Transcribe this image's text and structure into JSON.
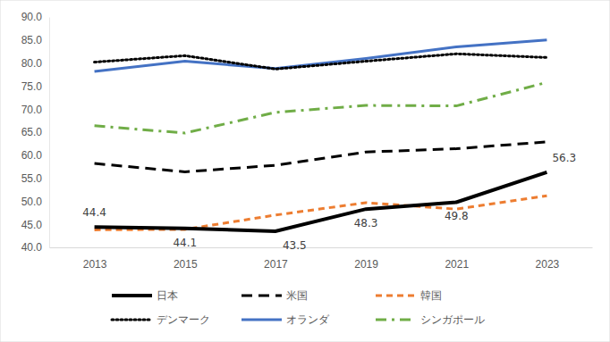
{
  "chart_data": {
    "type": "line",
    "categories": [
      "2013",
      "2015",
      "2017",
      "2019",
      "2021",
      "2023"
    ],
    "ylim": [
      40,
      90
    ],
    "yticks": [
      {
        "value": 40,
        "label": "40.0"
      },
      {
        "value": 45,
        "label": "45.0"
      },
      {
        "value": 50,
        "label": "50.0"
      },
      {
        "value": 55,
        "label": "55.0"
      },
      {
        "value": 60,
        "label": "60.0"
      },
      {
        "value": 65,
        "label": "65.0"
      },
      {
        "value": 70,
        "label": "70.0"
      },
      {
        "value": 75,
        "label": "75.0"
      },
      {
        "value": 80,
        "label": "80.0"
      },
      {
        "value": 85,
        "label": "85.0"
      },
      {
        "value": 90,
        "label": "90.0"
      }
    ],
    "grid": false,
    "legend": "bottom",
    "series": [
      {
        "name": "日本",
        "color": "#000000",
        "line_style": "solid",
        "data_labels": true,
        "values": [
          44.4,
          44.1,
          43.5,
          48.3,
          49.8,
          56.3
        ]
      },
      {
        "name": "米国",
        "color": "#000000",
        "line_style": "longdash",
        "values": [
          58.2,
          56.4,
          57.8,
          60.7,
          61.4,
          62.9
        ]
      },
      {
        "name": "韓国",
        "color": "#ed7d31",
        "line_style": "dashed",
        "values": [
          43.8,
          43.9,
          47.0,
          49.7,
          48.3,
          51.2
        ]
      },
      {
        "name": "デンマーク",
        "color": "#000000",
        "line_style": "dotted",
        "values": [
          80.2,
          81.6,
          78.7,
          80.4,
          82.0,
          81.2
        ]
      },
      {
        "name": "オランダ",
        "color": "#4472c4",
        "line_style": "solid",
        "values": [
          78.2,
          80.4,
          78.8,
          81.0,
          83.5,
          85.0
        ]
      },
      {
        "name": "シンガポール",
        "color": "#70ad47",
        "line_style": "dashdot",
        "values": [
          66.4,
          64.8,
          69.3,
          70.8,
          70.7,
          75.8
        ]
      }
    ]
  }
}
